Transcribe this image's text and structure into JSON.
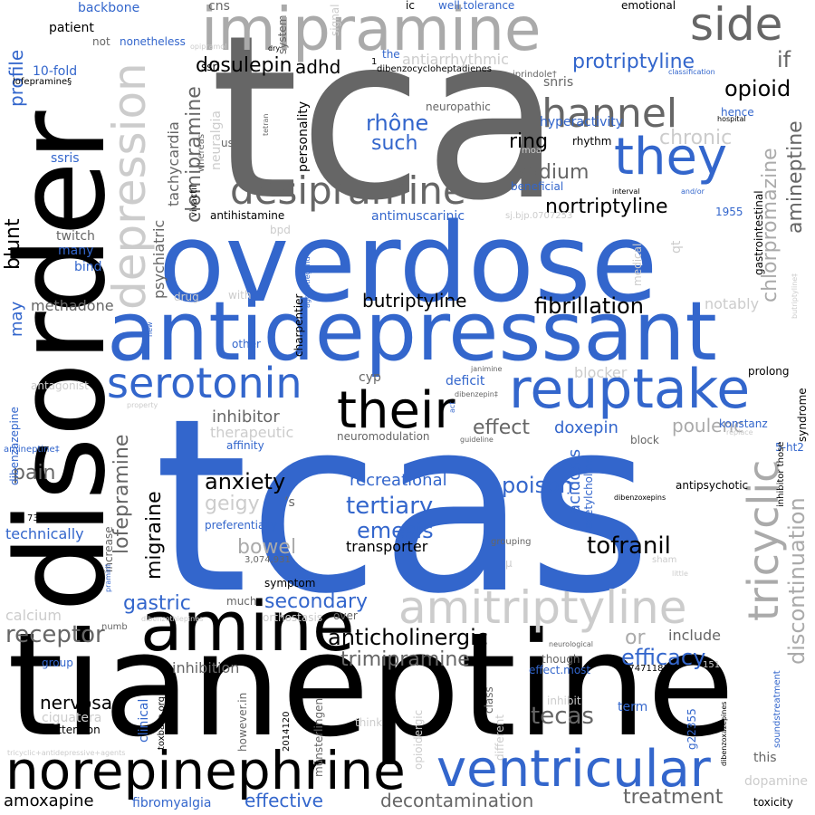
{
  "colors": {
    "blue": "#3366cc",
    "black": "#000000",
    "dark_grey": "#666666",
    "grey": "#aaaaaa",
    "light_grey": "#cccccc",
    "background": "#ffffff"
  },
  "words": {
    "tcas": "tcas",
    "tca": "tca",
    "tianeptine": "tianeptine",
    "overdose": "overdose",
    "disorder": "disorder",
    "antidepressant": "antidepressant",
    "imipramine": "imipramine",
    "amine": "amine",
    "norepinephrine": "norepinephrine",
    "reuptake": "reuptake",
    "ventricular": "ventricular",
    "amitriptyline": "amitriptyline",
    "their": "their",
    "they": "they",
    "channel": "channel",
    "desipramine": "desipramine",
    "serotonin": "serotonin",
    "side": "side",
    "tricyclic": "tricyclic",
    "depression": "depression",
    "opioid": "opioid",
    "protriptyline": "protriptyline",
    "butriptyline": "butriptyline",
    "fibrillation": "fibrillation",
    "nortriptyline": "nortriptyline",
    "anticholinergic": "anticholinergic",
    "tofranil": "tofranil",
    "anxiety": "anxiety",
    "tertiary": "tertiary",
    "receptor": "receptor",
    "dosulepin": "dosulepin",
    "emesis": "emesis",
    "poison": "poison",
    "secondary": "secondary",
    "tecas": "tecas",
    "decontamination": "decontamination",
    "treatment": "treatment",
    "effective": "effective",
    "efficacy": "efficacy",
    "nervosa": "nervosa",
    "amoxapine": "amoxapine",
    "trimipramine": "trimipramine",
    "recreational": "recreational",
    "gastric": "gastric",
    "sodium": "sodium",
    "ring": "ring",
    "rhone": "rhône",
    "such": "such",
    "chronic": "chronic",
    "effect": "effect",
    "doxepin": "doxepin",
    "inhibitor": "inhibitor",
    "migraine": "migraine",
    "lofepramine": "lofepramine",
    "clomipramine": "clomipramine",
    "amineptine": "amineptine",
    "chlorpromazine": "chlorpromazine",
    "discontinuation": "discontinuation",
    "blunt": "blunt",
    "profile": "profile",
    "pain": "pain",
    "methadone": "methadone",
    "may": "may",
    "adhd": "adhd",
    "if": "if",
    "bowel": "bowel",
    "geigy": "geigy",
    "transporter": "transporter",
    "therapeutic": "therapeutic",
    "poulenc": "poulenc",
    "acidosis": "acidosis",
    "or": "or",
    "include": "include",
    "dopamine": "dopamine",
    "toxicity": "toxicity",
    "this": "this",
    "calcium": "calcium",
    "inhibition": "inhibition",
    "blocker": "blocker",
    "notably": "notably",
    "antimuscarinic": "antimuscarinic",
    "antihistamine": "antihistamine",
    "twitch": "twitch",
    "many": "many",
    "bind": "bind",
    "ssris": "ssris",
    "ssri": "ssri",
    "patient": "patient",
    "not": "not",
    "nonetheless": "nonetheless",
    "backbone": "backbone",
    "cns": "cns",
    "system": "system",
    "signal": "signal",
    "ic": "ic",
    "well_tolerance": "well.tolerance",
    "emotional": "emotional",
    "antiarrhythmic": "antiarrhythmic",
    "the": "the",
    "dibenzocycloheptadienes": "dibenzocycloheptadienes",
    "iprindole": "iprindole†",
    "classification": "classification",
    "hyperactivity": "hyperactivity",
    "hence": "hence",
    "hospital": "hospital",
    "neuropathic": "neuropathic",
    "snris": "snris",
    "rhythm": "rhythm",
    "personality": "personality",
    "neuralgia": "neuralgia",
    "use": "use",
    "beneficial": "beneficial",
    "gastrointestinal": "gastrointestinal",
    "interval": "interval",
    "and_or": "and/or",
    "sj": "sj.bjp.0707253",
    "psychiatric": "psychiatric",
    "tachycardia": "tachycardia",
    "vivactil": "vivactil",
    "whereas": "whereas",
    "tetran": "tetran",
    "moa": "moa",
    "ten_fold": "10-fold",
    "lofepramine_s": "lofepramine§",
    "opipramol": "opipramol",
    "dry": "dry",
    "n_1955": "1955",
    "bpd": "bpd",
    "qt": "qt",
    "medical": "medical",
    "butriptyline_dag": "butriptyline‡",
    "drug": "drug",
    "with": "with",
    "agonistlegend": "agonistlegend",
    "charpentier": "charpentier",
    "new": "new",
    "other": "other",
    "cyp": "cyp",
    "antagonist": "antagonist",
    "deficit": "deficit",
    "prolong": "prolong",
    "janimine": "janimine",
    "dibenzepin": "dibenzepin‡",
    "property": "property",
    "dibenzazepine": "dibenzazepine",
    "act": "act",
    "guideline": "guideline",
    "neuromodulation": "neuromodulation",
    "affinity": "affinity",
    "block": "block",
    "replace": "replace",
    "konstanz": "konstanz",
    "syndrome": "syndrome",
    "five_ht2": "5-ht2",
    "inhibitor_those": "inhibitor those",
    "amineptine_dag": "amineptine‡",
    "apostrophe": "’s",
    "antipsychotic": "antipsychotic",
    "dibenzoxepins": "dibenzoxepins",
    "preferentially": "preferentially",
    "acetylcholine": "acetylcholine",
    "num_73748": "737–48",
    "technically": "technically",
    "increase": "increase",
    "num_3074931": "3,074,931",
    "grouping": "grouping",
    "sham": "sham",
    "little": "little",
    "symptom": "symptom",
    "pramiril": "pramiril",
    "much": "much",
    "orthostasis": "orthostasis",
    "over": "over",
    "dibenzothiepines": "dibenzothiepines",
    "numb": "numb",
    "neurological": "neurological",
    "though": "though",
    "group": "group",
    "toxbase": "toxbase.org",
    "however_in": "however.in",
    "munsterlingen": "münsterlingen",
    "effect_most": "effect.most",
    "num_17471183": "17471183",
    "num_151": "151",
    "soundstreatment": "soundstreatment",
    "dibenzoxazepines": "dibenzoxazepines",
    "ciguatera": "ciguatera",
    "clinical": "clinical",
    "attention": "attention",
    "num_2014120": "2014120",
    "think": "think",
    "class": "class",
    "opioidergic": "opioidergic",
    "different": "different",
    "inhibit": "inhibit",
    "term": "term",
    "g22355": "g22355",
    "fibromyalgia": "fibromyalgia",
    "tricyclic_agents": "tricyclic+antidepressive+agents",
    "mu": "μ",
    "one": "1"
  }
}
